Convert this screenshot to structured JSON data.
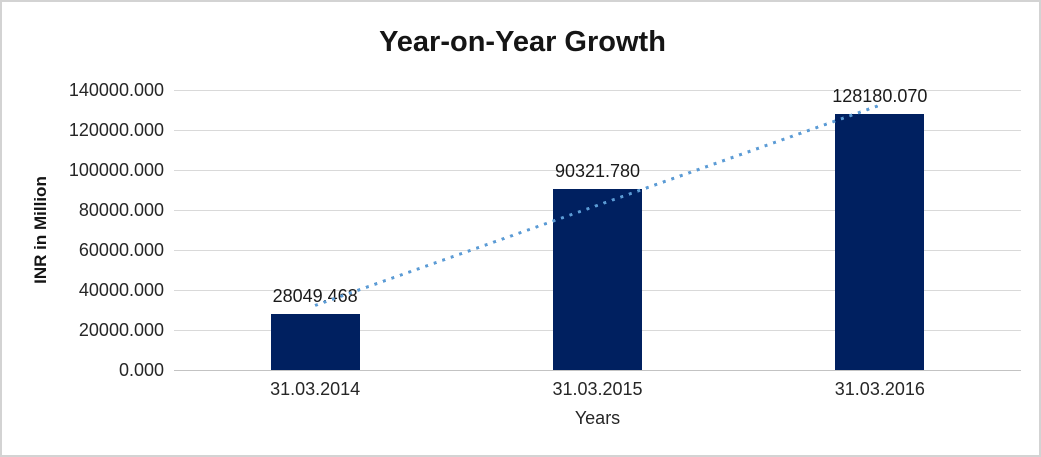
{
  "chart_data": {
    "type": "bar",
    "title": "Year-on-Year Growth",
    "xlabel": "Years",
    "ylabel": "INR in Million",
    "categories": [
      "31.03.2014",
      "31.03.2015",
      "31.03.2016"
    ],
    "values": [
      28049.468,
      90321.78,
      128180.07
    ],
    "value_labels": [
      "28049.468",
      "90321.780",
      "128180.070"
    ],
    "ylim": [
      0,
      140000
    ],
    "grid": true,
    "legend": "none",
    "yticks": [
      {
        "value": 140000,
        "label": "140000.000"
      },
      {
        "value": 120000,
        "label": "120000.000"
      },
      {
        "value": 100000,
        "label": "100000.000"
      },
      {
        "value": 80000,
        "label": "80000.000"
      },
      {
        "value": 60000,
        "label": "60000.000"
      },
      {
        "value": 40000,
        "label": "40000.000"
      },
      {
        "value": 20000,
        "label": "20000.000"
      },
      {
        "value": 0,
        "label": "0.000"
      }
    ],
    "bar_color": "#002060",
    "trendline": {
      "type": "linear",
      "style": "dotted",
      "color": "#5b9bd5",
      "start_category_index": 0,
      "end_category_index": 2,
      "start_value": 32118,
      "end_value": 132249
    }
  }
}
